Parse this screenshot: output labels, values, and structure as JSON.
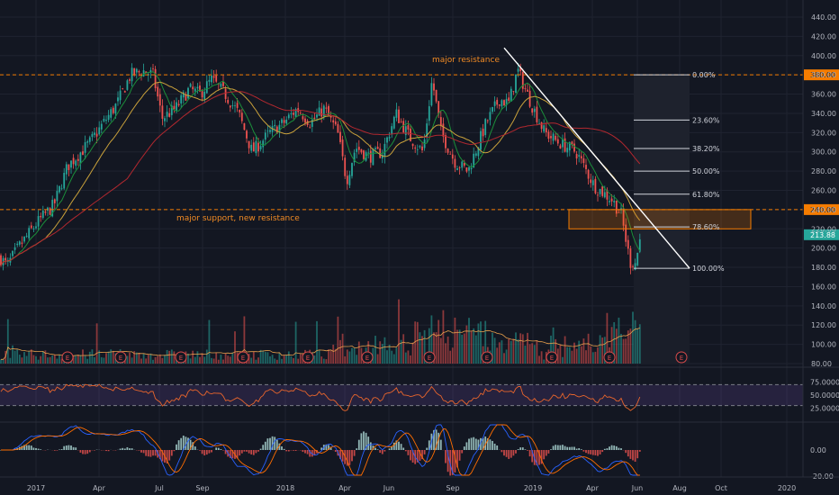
{
  "colors": {
    "background": "#131722",
    "grid": "#1f2330",
    "up": "#26a69a",
    "down": "#ef5350",
    "ma_fast": "#1b8f3a",
    "ma_mid": "#c9a13b",
    "ma_slow": "#b2282f",
    "level": "#f57c00",
    "rsi": "#e8652c",
    "macd": "#2962ff",
    "signal": "#ff6d00",
    "fib": "#d1d4dc",
    "annotation": "#f08a24",
    "event_badge": "#d84b4b"
  },
  "chart_data": {
    "type": "candlestick",
    "x_ticks": [
      "2017",
      "Apr",
      "Jul",
      "Sep",
      "2018",
      "Apr",
      "Jun",
      "Sep",
      "2019",
      "Apr",
      "Jun",
      "Aug",
      "Oct",
      "2020"
    ],
    "price_axis": {
      "ticks": [
        "440.00",
        "420.00",
        "400.00",
        "380.00",
        "360.00",
        "340.00",
        "320.00",
        "300.00",
        "280.00",
        "260.00",
        "240.00",
        "220.00",
        "200.00",
        "180.00",
        "160.00",
        "140.00",
        "120.00",
        "100.00",
        "80.00"
      ],
      "range": [
        80,
        440
      ]
    },
    "price_series": {
      "start": 190,
      "points": [
        [
          0,
          190
        ],
        [
          8,
          182
        ],
        [
          20,
          200
        ],
        [
          40,
          225
        ],
        [
          60,
          245
        ],
        [
          75,
          285
        ],
        [
          90,
          300
        ],
        [
          100,
          310
        ],
        [
          115,
          330
        ],
        [
          130,
          350
        ],
        [
          145,
          380
        ],
        [
          160,
          384
        ],
        [
          170,
          380
        ],
        [
          180,
          335
        ],
        [
          195,
          345
        ],
        [
          210,
          365
        ],
        [
          222,
          360
        ],
        [
          235,
          375
        ],
        [
          250,
          360
        ],
        [
          265,
          340
        ],
        [
          280,
          300
        ],
        [
          300,
          320
        ],
        [
          315,
          330
        ],
        [
          330,
          345
        ],
        [
          345,
          330
        ],
        [
          360,
          345
        ],
        [
          375,
          320
        ],
        [
          385,
          270
        ],
        [
          395,
          305
        ],
        [
          410,
          295
        ],
        [
          425,
          300
        ],
        [
          440,
          340
        ],
        [
          455,
          315
        ],
        [
          470,
          300
        ],
        [
          480,
          375
        ],
        [
          490,
          320
        ],
        [
          505,
          290
        ],
        [
          520,
          280
        ],
        [
          540,
          330
        ],
        [
          555,
          355
        ],
        [
          565,
          350
        ],
        [
          575,
          385
        ],
        [
          590,
          350
        ],
        [
          605,
          320
        ],
        [
          620,
          310
        ],
        [
          640,
          300
        ],
        [
          660,
          265
        ],
        [
          680,
          250
        ],
        [
          690,
          235
        ],
        [
          700,
          185
        ],
        [
          706,
          185
        ],
        [
          712,
          214
        ]
      ]
    },
    "last_price": "213.88",
    "level_labels": [
      "380.00",
      "240.00"
    ],
    "levels": [
      380,
      240
    ],
    "fib_levels": [
      {
        "label": "0.00%",
        "value": 380
      },
      {
        "label": "23.60%",
        "value": 333
      },
      {
        "label": "38.20%",
        "value": 303.5
      },
      {
        "label": "50.00%",
        "value": 280
      },
      {
        "label": "61.80%",
        "value": 256
      },
      {
        "label": "78.60%",
        "value": 222
      },
      {
        "label": "100.00%",
        "value": 179
      }
    ],
    "annotations": [
      "major resistance",
      "major support, new resistance"
    ],
    "event_marker": "E",
    "volume": {
      "type": "bar",
      "note": "histogram with moving average"
    },
    "rsi": {
      "ticks": [
        "75.0000",
        "50.0000",
        "25.0000"
      ],
      "bands": [
        70,
        30
      ]
    },
    "macd": {
      "ticks": [
        "0.00",
        "-20.00"
      ]
    }
  }
}
